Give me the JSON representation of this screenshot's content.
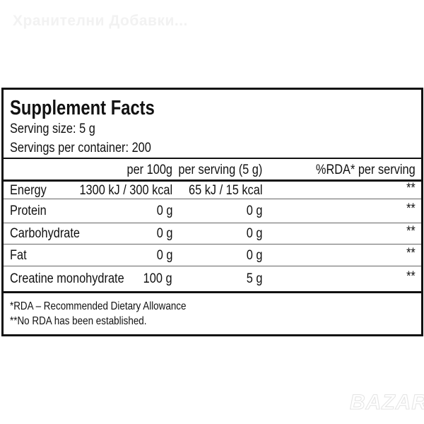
{
  "watermark": "Хранителни Добавки...",
  "logo": "BAZAR",
  "label": {
    "title": "Supplement Facts",
    "serving_size": "Serving size: 5 g",
    "servings_per_container": "Servings per container: 200",
    "columns": [
      "per 100g",
      "per serving (5 g)",
      "%RDA* per serving"
    ],
    "rows": [
      {
        "name": "Energy",
        "per100": "1300 kJ / 300 kcal",
        "perServing": "65 kJ / 15 kcal",
        "rda": "**"
      },
      {
        "name": "Protein",
        "per100": "0 g",
        "perServing": "0 g",
        "rda": "**"
      },
      {
        "name": "Carbohydrate",
        "per100": "0 g",
        "perServing": "0 g",
        "rda": "**"
      },
      {
        "name": "Fat",
        "per100": "0 g",
        "perServing": "0 g",
        "rda": "**"
      },
      {
        "name": "Creatine monohydrate",
        "per100": "100 g",
        "perServing": "5 g",
        "rda": "**"
      }
    ],
    "footnotes": [
      "*RDA – Recommended Dietary Allowance",
      "**No RDA has been established."
    ]
  }
}
